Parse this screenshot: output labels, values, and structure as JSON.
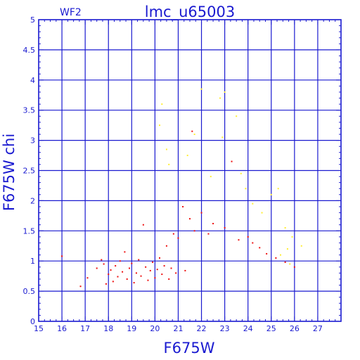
{
  "chart_data": {
    "type": "scatter",
    "title": "lmc_u65003",
    "subtitle": "WF2",
    "xlabel": "F675W",
    "ylabel": "F675W chi",
    "xlim": [
      15,
      28
    ],
    "ylim": [
      0,
      5
    ],
    "xticks": [
      "15",
      "16",
      "17",
      "18",
      "19",
      "20",
      "21",
      "22",
      "23",
      "24",
      "25",
      "26",
      "27"
    ],
    "yticks": [
      "0",
      "0.5",
      "1",
      "1.5",
      "2",
      "2.5",
      "3",
      "3.5",
      "4",
      "4.5",
      "5"
    ],
    "grid": true,
    "colors": {
      "axis": "#1a1ad0",
      "grid": "#1a1ad0",
      "series_main": "#ee1111",
      "series_flagged": "#ffee33"
    },
    "series": [
      {
        "color": "#ee1111",
        "points": [
          [
            16.0,
            1.08
          ],
          [
            16.8,
            0.58
          ],
          [
            17.1,
            0.72
          ],
          [
            17.5,
            0.88
          ],
          [
            17.7,
            1.02
          ],
          [
            17.8,
            0.95
          ],
          [
            17.9,
            0.62
          ],
          [
            18.0,
            0.78
          ],
          [
            18.1,
            0.85
          ],
          [
            18.2,
            0.66
          ],
          [
            18.3,
            0.92
          ],
          [
            18.4,
            0.74
          ],
          [
            18.5,
            1.0
          ],
          [
            18.6,
            0.82
          ],
          [
            18.7,
            1.15
          ],
          [
            18.8,
            0.7
          ],
          [
            18.9,
            0.88
          ],
          [
            19.0,
            0.96
          ],
          [
            19.1,
            0.64
          ],
          [
            19.2,
            0.8
          ],
          [
            19.3,
            1.02
          ],
          [
            19.4,
            0.75
          ],
          [
            19.5,
            1.6
          ],
          [
            19.6,
            0.9
          ],
          [
            19.7,
            0.68
          ],
          [
            19.8,
            0.84
          ],
          [
            19.9,
            0.98
          ],
          [
            20.0,
            0.72
          ],
          [
            20.1,
            0.86
          ],
          [
            20.2,
            1.05
          ],
          [
            20.3,
            0.78
          ],
          [
            20.4,
            0.92
          ],
          [
            20.5,
            1.25
          ],
          [
            20.6,
            0.7
          ],
          [
            20.7,
            0.88
          ],
          [
            20.8,
            1.45
          ],
          [
            20.9,
            0.8
          ],
          [
            21.0,
            1.38
          ],
          [
            21.2,
            1.9
          ],
          [
            21.3,
            0.84
          ],
          [
            21.5,
            1.7
          ],
          [
            21.7,
            1.5
          ],
          [
            21.6,
            3.15
          ],
          [
            22.0,
            1.8
          ],
          [
            22.3,
            1.45
          ],
          [
            22.5,
            1.62
          ],
          [
            23.0,
            1.55
          ],
          [
            23.3,
            2.65
          ],
          [
            23.6,
            1.35
          ],
          [
            24.0,
            1.4
          ],
          [
            24.2,
            1.3
          ],
          [
            24.5,
            1.22
          ],
          [
            24.8,
            1.12
          ],
          [
            25.2,
            1.05
          ],
          [
            25.6,
            0.98
          ],
          [
            26.0,
            0.9
          ]
        ]
      },
      {
        "color": "#ffee33",
        "points": [
          [
            20.2,
            3.25
          ],
          [
            20.3,
            3.6
          ],
          [
            20.5,
            2.85
          ],
          [
            20.6,
            2.6
          ],
          [
            21.4,
            2.75
          ],
          [
            21.7,
            3.1
          ],
          [
            22.0,
            3.85
          ],
          [
            22.4,
            2.4
          ],
          [
            22.8,
            3.7
          ],
          [
            22.9,
            3.05
          ],
          [
            23.0,
            3.8
          ],
          [
            23.5,
            3.4
          ],
          [
            23.7,
            2.45
          ],
          [
            23.9,
            2.2
          ],
          [
            24.2,
            1.95
          ],
          [
            24.6,
            1.8
          ],
          [
            25.0,
            2.1
          ],
          [
            25.3,
            2.2
          ],
          [
            25.6,
            1.55
          ],
          [
            25.9,
            1.4
          ],
          [
            26.3,
            1.25
          ],
          [
            25.7,
            1.2
          ],
          [
            25.4,
            1.1
          ],
          [
            25.8,
            0.95
          ]
        ]
      }
    ]
  }
}
